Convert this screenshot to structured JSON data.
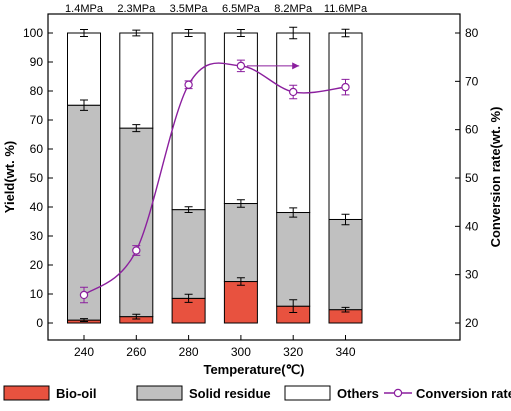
{
  "chart_data": {
    "type": "bar",
    "stacked": true,
    "categories": [
      "240",
      "260",
      "280",
      "300",
      "320",
      "340"
    ],
    "pressure_labels": [
      "1.4MPa",
      "2.3MPa",
      "3.5MPa",
      "6.5MPa",
      "8.2MPa",
      "11.6MPa"
    ],
    "xlabel": "Temperature(℃)",
    "ylabel": "Yield(wt. %)",
    "y2label": "Conversion rate(wt. %)",
    "ylim": [
      0,
      100
    ],
    "y2lim": [
      20,
      80
    ],
    "yticks": [
      "0",
      "10",
      "20",
      "30",
      "40",
      "50",
      "60",
      "70",
      "80",
      "90",
      "100"
    ],
    "y2ticks": [
      "20",
      "30",
      "40",
      "50",
      "60",
      "70",
      "80"
    ],
    "series": [
      {
        "name": "Bio-oil",
        "color": "#e8523f",
        "values": [
          1.0,
          2.2,
          8.5,
          14.3,
          5.8,
          4.6
        ],
        "errors": [
          0.5,
          0.8,
          1.4,
          1.3,
          2.2,
          0.8
        ]
      },
      {
        "name": "Solid residue",
        "color": "#c0c0c0",
        "values": [
          74.1,
          65.0,
          30.6,
          26.9,
          32.3,
          31.1
        ],
        "errors": [
          1.8,
          1.2,
          1.0,
          1.3,
          1.6,
          1.8
        ]
      },
      {
        "name": "Others",
        "color": "#ffffff",
        "values": [
          24.9,
          32.8,
          60.9,
          58.8,
          61.9,
          64.3
        ],
        "errors": [
          1.2,
          1.0,
          1.2,
          1.2,
          2.0,
          1.3
        ]
      }
    ],
    "line_series": {
      "name": "Conversion rate",
      "color": "#8b1f9e",
      "axis": "right",
      "values": [
        25.8,
        35.0,
        69.3,
        73.2,
        67.8,
        68.8
      ],
      "errors": [
        1.6,
        1.0,
        0.8,
        1.2,
        1.4,
        1.6
      ]
    },
    "annotation": {
      "type": "arrow",
      "from_category": "300",
      "to_category": "320",
      "color": "#8b1f9e"
    },
    "legend": {
      "position": "bottom",
      "items": [
        "Bio-oil",
        "Solid residue",
        "Others",
        "Conversion rate"
      ]
    },
    "grid": false
  }
}
